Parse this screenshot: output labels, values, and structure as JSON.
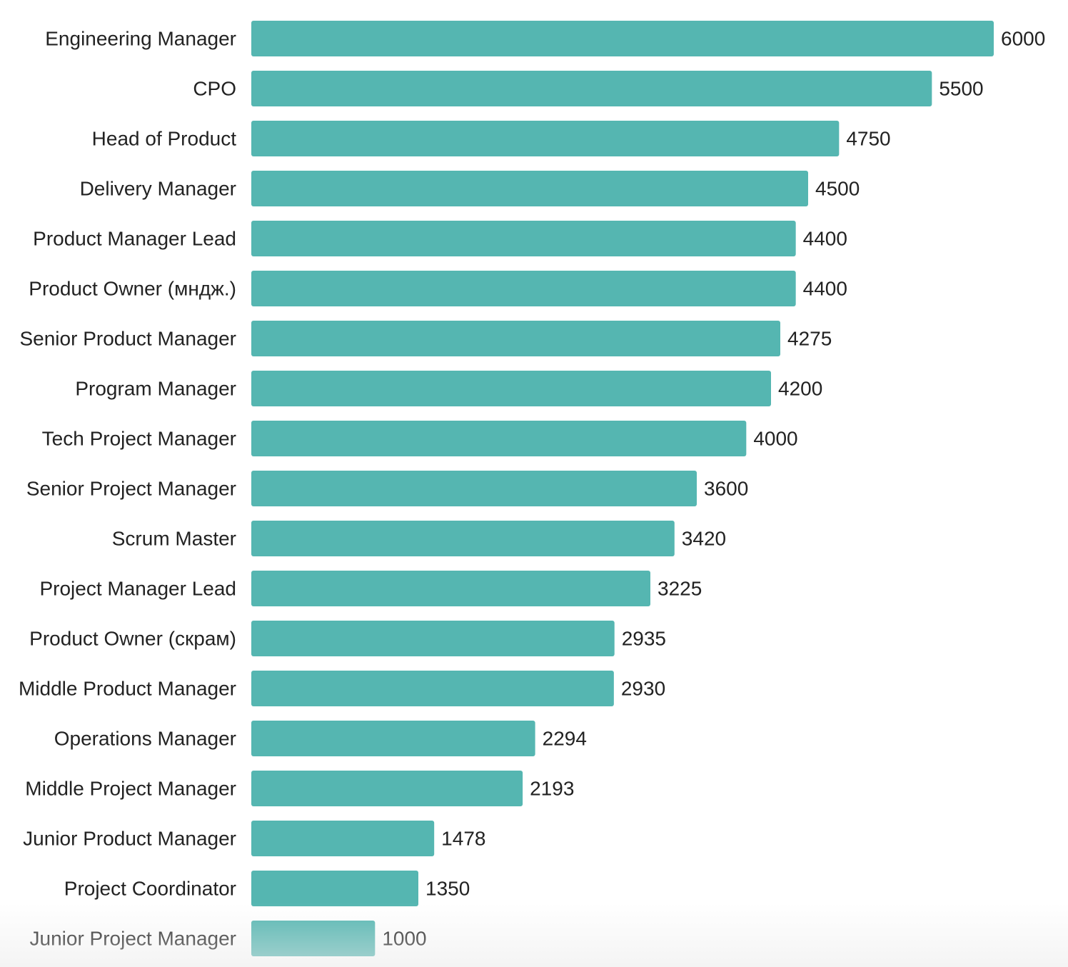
{
  "chart_data": {
    "type": "bar",
    "orientation": "horizontal",
    "categories": [
      "Engineering Manager",
      "CPO",
      "Head of Product",
      "Delivery Manager",
      "Product Manager Lead",
      "Product Owner (мндж.)",
      "Senior Product Manager",
      "Program Manager",
      "Tech Project Manager",
      "Senior Project Manager",
      "Scrum Master",
      "Project Manager Lead",
      "Product Owner (скрам)",
      "Middle Product Manager",
      "Operations Manager",
      "Middle Project Manager",
      "Junior Product Manager",
      "Project Coordinator",
      "Junior Project Manager"
    ],
    "values": [
      6000,
      5500,
      4750,
      4500,
      4400,
      4400,
      4275,
      4200,
      4000,
      3600,
      3420,
      3225,
      2935,
      2930,
      2294,
      2193,
      1478,
      1350,
      1000
    ],
    "xlim": [
      0,
      6000
    ],
    "grid": false,
    "bar_color": "#55b6b1",
    "text_color": "#222222"
  }
}
